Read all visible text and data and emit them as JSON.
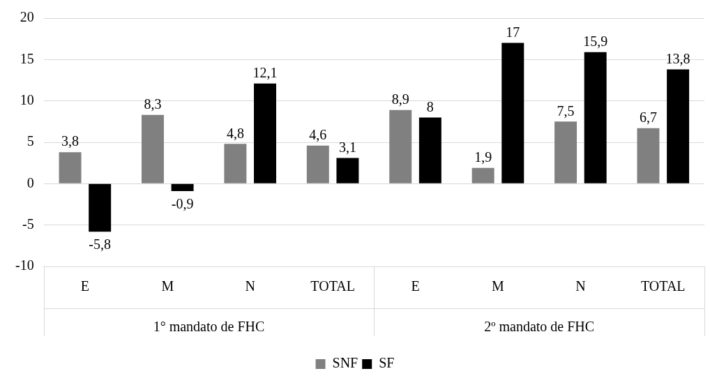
{
  "chart_data": {
    "type": "bar",
    "categories": [
      "E",
      "M",
      "N",
      "TOTAL",
      "E",
      "M",
      "N",
      "TOTAL"
    ],
    "series": [
      {
        "name": "SNF",
        "color": "#808080",
        "values": [
          3.8,
          8.3,
          4.8,
          4.6,
          8.9,
          1.9,
          7.5,
          6.7
        ],
        "value_labels": [
          "3,8",
          "8,3",
          "4,8",
          "4,6",
          "8,9",
          "1,9",
          "7,5",
          "6,7"
        ]
      },
      {
        "name": "SF",
        "color": "#000000",
        "values": [
          -5.8,
          -0.9,
          12.1,
          3.1,
          8,
          17,
          15.9,
          13.8
        ],
        "value_labels": [
          "-5,8",
          "-0,9",
          "12,1",
          "3,1",
          "8",
          "17",
          "15,9",
          "13,8"
        ]
      }
    ],
    "ylim": [
      -10,
      20
    ],
    "yticks": [
      -10,
      -5,
      0,
      5,
      10,
      15,
      20
    ],
    "grid": "y",
    "legend": "bottom",
    "annotations": [
      "1° mandato de FHC",
      "2º mandato de FHC"
    ]
  }
}
